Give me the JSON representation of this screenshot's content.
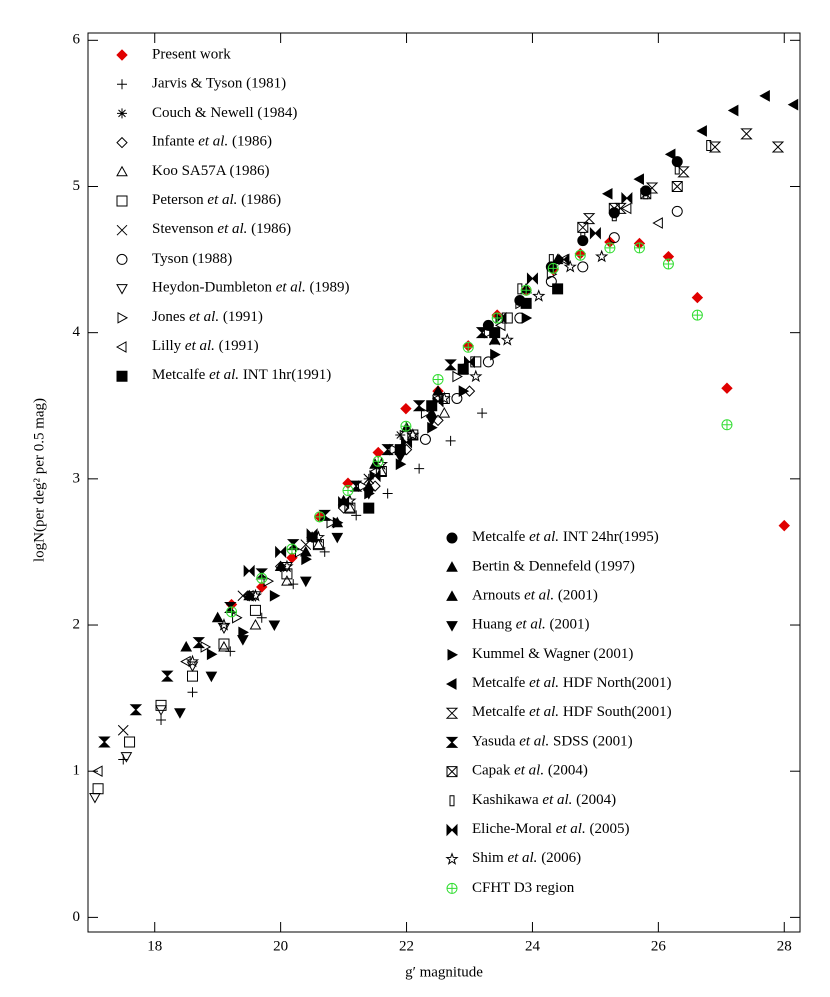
{
  "chart_data": {
    "type": "scatter",
    "x_label": "g′ magnitude",
    "y_label": "logN(per deg² per 0.5 mag)",
    "xlim": [
      16.94,
      28.25
    ],
    "ylim": [
      -0.1,
      6.05
    ],
    "xticks": [
      18,
      20,
      22,
      24,
      26,
      28
    ],
    "yticks": [
      0,
      1,
      2,
      3,
      4,
      5,
      6
    ],
    "grid": false,
    "series": [
      {
        "name": "Present work",
        "color": "#e00000",
        "marker": "diamond",
        "x": [
          19.22,
          19.7,
          20.18,
          20.62,
          21.07,
          21.55,
          21.99,
          22.5,
          22.98,
          23.44,
          23.9,
          24.33,
          24.76,
          25.23,
          25.7,
          26.16,
          26.62,
          27.09,
          28.0
        ],
        "values": [
          2.14,
          2.26,
          2.46,
          2.74,
          2.97,
          3.18,
          3.48,
          3.6,
          3.91,
          4.12,
          4.29,
          4.43,
          4.54,
          4.62,
          4.61,
          4.52,
          4.24,
          3.62,
          2.68
        ]
      },
      {
        "name": "Jarvis & Tyson (1981)",
        "color": "#000000",
        "marker": "plus",
        "x": [
          17.5,
          18.1,
          18.6,
          19.2,
          19.7,
          20.2,
          20.7,
          21.2,
          21.7,
          22.2,
          22.7,
          23.2
        ],
        "values": [
          1.08,
          1.35,
          1.54,
          1.82,
          2.05,
          2.28,
          2.5,
          2.75,
          2.9,
          3.07,
          3.26,
          3.45
        ]
      },
      {
        "name": "Couch & Newell (1984)",
        "color": "#000000",
        "marker": "asterisk",
        "x": [
          21.4,
          21.9,
          22.4,
          22.9,
          23.4
        ],
        "values": [
          3.0,
          3.3,
          3.5,
          3.75,
          4.0
        ]
      },
      {
        "name": "Infante et al. (1986)",
        "color": "#000000",
        "marker": "diamond-open",
        "x": [
          19.5,
          20.0,
          20.5,
          21.0,
          21.5,
          22.0,
          22.5,
          23.0
        ],
        "values": [
          2.2,
          2.4,
          2.6,
          2.8,
          2.95,
          3.2,
          3.4,
          3.6
        ]
      },
      {
        "name": "Koo SA57A (1986)",
        "color": "#000000",
        "marker": "triangle-open",
        "x": [
          19.1,
          19.6,
          20.1,
          20.6,
          21.1,
          21.6,
          22.1,
          22.6
        ],
        "values": [
          1.85,
          2.0,
          2.3,
          2.55,
          2.8,
          3.05,
          3.3,
          3.45
        ]
      },
      {
        "name": "Peterson et al. (1986)",
        "color": "#000000",
        "marker": "square-open",
        "x": [
          17.1,
          17.6,
          18.1,
          18.6,
          19.1,
          19.6,
          20.1,
          20.6,
          21.1,
          21.6,
          22.1,
          22.6,
          23.1,
          23.6
        ],
        "values": [
          0.88,
          1.2,
          1.45,
          1.65,
          1.87,
          2.1,
          2.35,
          2.55,
          2.8,
          3.05,
          3.3,
          3.55,
          3.8,
          4.1
        ]
      },
      {
        "name": "Stevenson et al. (1986)",
        "color": "#000000",
        "marker": "cross",
        "x": [
          17.5,
          19.4,
          20.4,
          21.4,
          22.4,
          23.4
        ],
        "values": [
          1.28,
          2.2,
          2.55,
          3.0,
          3.5,
          3.95
        ]
      },
      {
        "name": "Tyson (1988)",
        "color": "#000000",
        "marker": "circle-open",
        "x": [
          22.3,
          22.8,
          23.3,
          23.8,
          24.3,
          24.8,
          25.3,
          26.3
        ],
        "values": [
          3.27,
          3.55,
          3.8,
          4.1,
          4.35,
          4.45,
          4.65,
          4.83
        ]
      },
      {
        "name": "Heydon-Dumbleton et al. (1989)",
        "color": "#000000",
        "marker": "tri-down-open",
        "x": [
          17.05,
          17.55,
          18.1,
          18.6,
          19.1,
          19.6,
          20.1
        ],
        "values": [
          0.82,
          1.1,
          1.42,
          1.72,
          1.98,
          2.2,
          2.4
        ]
      },
      {
        "name": "Jones et al. (1991)",
        "color": "#000000",
        "marker": "tri-right-open",
        "x": [
          18.8,
          19.3,
          19.8,
          20.3,
          20.8,
          21.3,
          21.8,
          22.3,
          22.8,
          23.3,
          23.8,
          24.3
        ],
        "values": [
          1.85,
          2.05,
          2.3,
          2.5,
          2.7,
          2.95,
          3.2,
          3.45,
          3.7,
          4.0,
          4.2,
          4.4
        ]
      },
      {
        "name": "Lilly et al. (1991)",
        "color": "#000000",
        "marker": "tri-left-open",
        "x": [
          17.1,
          18.5,
          19.5,
          20.5,
          21.5,
          22.5,
          23.5,
          24.5,
          25.5,
          26.0
        ],
        "values": [
          1.0,
          1.75,
          2.2,
          2.6,
          3.05,
          3.55,
          4.05,
          4.5,
          4.85,
          4.75
        ]
      },
      {
        "name": "Metcalfe et al. INT 1hr(1991)",
        "color": "#000000",
        "marker": "square",
        "x": [
          21.4,
          21.9,
          22.4,
          22.9,
          23.4,
          23.9,
          24.4
        ],
        "values": [
          2.8,
          3.2,
          3.5,
          3.75,
          4.0,
          4.2,
          4.3
        ]
      },
      {
        "name": "Metcalfe et al. INT 24hr(1995)",
        "color": "#000000",
        "marker": "circle",
        "x": [
          23.3,
          23.8,
          24.3,
          24.8,
          25.3,
          25.8,
          26.3
        ],
        "values": [
          4.05,
          4.22,
          4.45,
          4.63,
          4.82,
          4.97,
          5.17
        ]
      },
      {
        "name": "Bertin & Dennefeld (1997)",
        "color": "#000000",
        "marker": "triangle",
        "x": [
          18.5,
          19.0,
          19.5,
          20.0,
          20.5,
          21.0,
          21.5,
          22.0,
          22.5
        ],
        "values": [
          1.85,
          2.05,
          2.2,
          2.4,
          2.6,
          2.85,
          3.1,
          3.35,
          3.6
        ]
      },
      {
        "name": "Arnouts et al. (2001)",
        "color": "#000000",
        "marker": "triangle",
        "x": [
          20.4,
          20.9,
          21.4,
          21.9,
          22.4,
          22.9,
          23.4,
          23.9,
          24.4
        ],
        "values": [
          2.5,
          2.7,
          2.95,
          3.2,
          3.45,
          3.75,
          3.95,
          4.3,
          4.5
        ]
      },
      {
        "name": "Huang et al. (2001)",
        "color": "#000000",
        "marker": "tri-down",
        "x": [
          18.4,
          18.9,
          19.4,
          19.9,
          20.4,
          20.9,
          21.4,
          21.9,
          22.4
        ],
        "values": [
          1.4,
          1.65,
          1.9,
          2.0,
          2.3,
          2.6,
          2.9,
          3.15,
          3.4
        ]
      },
      {
        "name": "Kummel & Wagner (2001)",
        "color": "#000000",
        "marker": "tri-right",
        "x": [
          18.9,
          19.4,
          19.9,
          20.4,
          20.9,
          21.4,
          21.9,
          22.4,
          22.9,
          23.4,
          23.9
        ],
        "values": [
          1.8,
          1.95,
          2.2,
          2.45,
          2.7,
          2.9,
          3.1,
          3.35,
          3.6,
          3.85,
          4.1
        ]
      },
      {
        "name": "Metcalfe et al. HDF North(2001)",
        "color": "#000000",
        "marker": "tri-left",
        "x": [
          25.2,
          25.7,
          26.2,
          26.7,
          27.2,
          27.7,
          28.15
        ],
        "values": [
          4.95,
          5.05,
          5.22,
          5.38,
          5.52,
          5.62,
          5.56
        ]
      },
      {
        "name": "Metcalfe et al. HDF South(2001)",
        "color": "#000000",
        "marker": "hourglass-open",
        "x": [
          24.9,
          25.4,
          25.9,
          26.4,
          26.9,
          27.4,
          27.9
        ],
        "values": [
          4.78,
          4.85,
          4.99,
          5.1,
          5.27,
          5.36,
          5.27
        ]
      },
      {
        "name": "Yasuda et al. SDSS (2001)",
        "color": "#000000",
        "marker": "hourglass",
        "x": [
          17.2,
          17.7,
          18.2,
          18.7,
          19.2,
          19.7,
          20.2,
          20.7,
          21.2,
          21.7,
          22.2,
          22.7,
          23.2
        ],
        "values": [
          1.2,
          1.42,
          1.65,
          1.88,
          2.12,
          2.35,
          2.55,
          2.75,
          2.95,
          3.2,
          3.5,
          3.78,
          4.0
        ]
      },
      {
        "name": "Capak et al. (2004)",
        "color": "#000000",
        "marker": "bowtie-box",
        "x": [
          24.8,
          25.3,
          25.8,
          26.3
        ],
        "values": [
          4.72,
          4.85,
          4.95,
          5.0
        ]
      },
      {
        "name": "Kashikawa et al. (2004)",
        "color": "#000000",
        "marker": "thin-rect",
        "x": [
          23.8,
          24.3,
          24.8,
          25.3,
          25.8,
          26.3,
          26.8
        ],
        "values": [
          4.3,
          4.5,
          4.65,
          4.8,
          4.95,
          5.12,
          5.28
        ]
      },
      {
        "name": "Eliche-Moral et al. (2005)",
        "color": "#000000",
        "marker": "bowtie",
        "x": [
          19.5,
          20.0,
          20.5,
          21.0,
          21.5,
          22.0,
          22.5,
          23.0,
          23.5,
          24.0,
          24.5,
          25.0,
          25.5
        ],
        "values": [
          2.37,
          2.5,
          2.62,
          2.84,
          3.02,
          3.25,
          3.53,
          3.8,
          4.1,
          4.37,
          4.5,
          4.68,
          4.92
        ]
      },
      {
        "name": "Shim et al. (2006)",
        "color": "#000000",
        "marker": "star",
        "x": [
          18.6,
          19.1,
          19.6,
          20.1,
          20.6,
          21.1,
          21.6,
          22.1,
          22.6,
          23.1,
          23.6,
          24.1,
          24.6,
          25.1
        ],
        "values": [
          1.75,
          2.0,
          2.2,
          2.4,
          2.6,
          2.85,
          3.1,
          3.3,
          3.55,
          3.7,
          3.95,
          4.25,
          4.45,
          4.52
        ]
      },
      {
        "name": "CFHT D3 region",
        "color": "#33dd33",
        "marker": "circle-plus",
        "x": [
          19.22,
          19.7,
          20.18,
          20.62,
          21.07,
          21.55,
          21.99,
          22.5,
          22.98,
          23.44,
          23.9,
          24.33,
          24.76,
          25.23,
          25.7,
          26.16,
          26.62,
          27.09
        ],
        "values": [
          2.09,
          2.32,
          2.52,
          2.74,
          2.92,
          3.12,
          3.36,
          3.68,
          3.9,
          4.1,
          4.29,
          4.44,
          4.53,
          4.58,
          4.58,
          4.47,
          4.12,
          3.37
        ]
      }
    ]
  }
}
